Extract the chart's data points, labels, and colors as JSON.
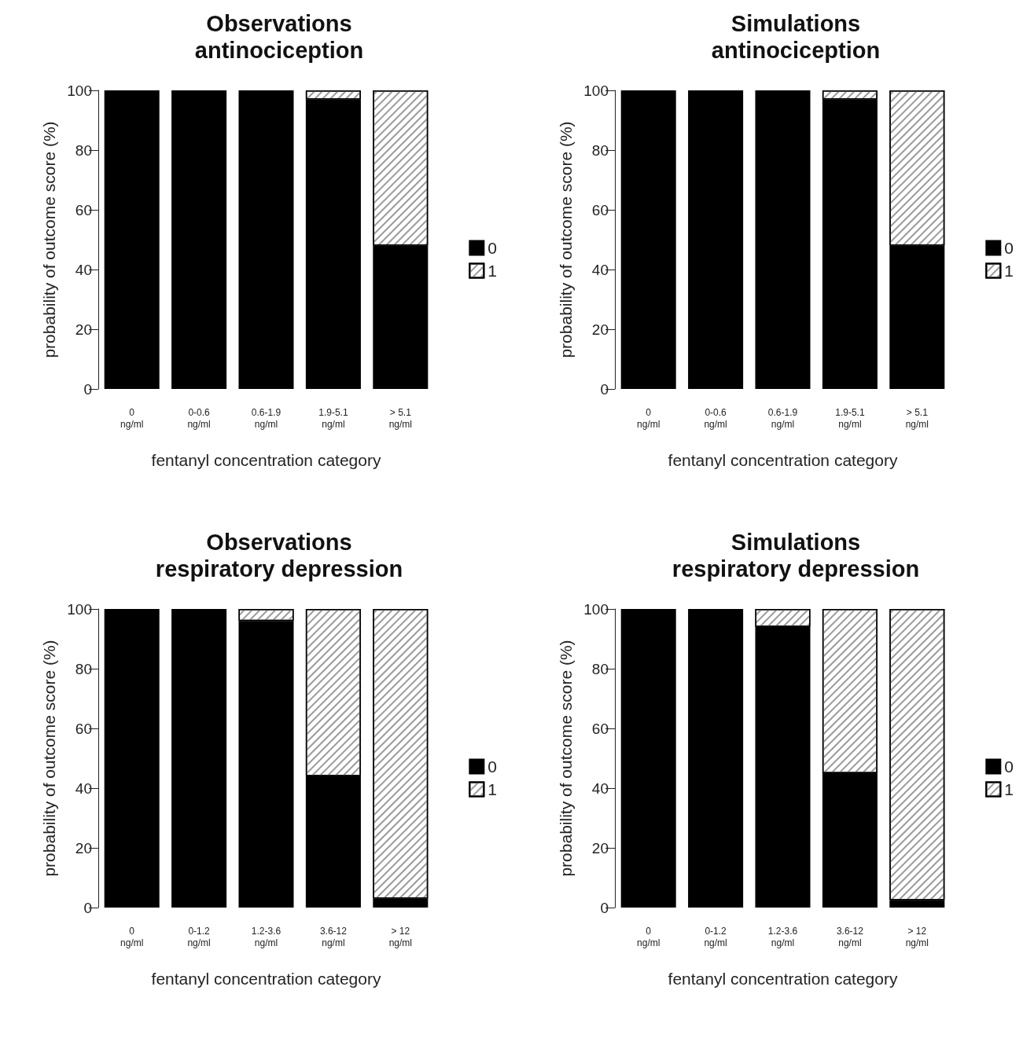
{
  "chart_data": [
    {
      "type": "bar",
      "title": "Observations\nantinociception",
      "xlabel": "fentanyl concentration category",
      "ylabel": "probability of outcome score (%)",
      "categories": [
        "0\nng/ml",
        "0-0.6\nng/ml",
        "0.6-1.9\nng/ml",
        "1.9-5.1\nng/ml",
        "> 5.1\nng/ml"
      ],
      "stacked": true,
      "ylim": [
        0,
        100
      ],
      "yticks": [
        0,
        20,
        40,
        60,
        80,
        100
      ],
      "legend": "right",
      "grid": false,
      "series": [
        {
          "name": "0",
          "color": "#000000",
          "values": [
            100,
            100,
            100,
            97,
            48
          ]
        },
        {
          "name": "1",
          "color": "#ffffff",
          "values": [
            0,
            0,
            0,
            3,
            52
          ]
        }
      ]
    },
    {
      "type": "bar",
      "title": "Simulations\nantinociception",
      "xlabel": "fentanyl concentration category",
      "ylabel": "probability of outcome score (%)",
      "categories": [
        "0\nng/ml",
        "0-0.6\nng/ml",
        "0.6-1.9\nng/ml",
        "1.9-5.1\nng/ml",
        "> 5.1\nng/ml"
      ],
      "stacked": true,
      "ylim": [
        0,
        100
      ],
      "yticks": [
        0,
        20,
        40,
        60,
        80,
        100
      ],
      "legend": "right",
      "grid": false,
      "series": [
        {
          "name": "0",
          "color": "#000000",
          "values": [
            100,
            100,
            100,
            97,
            48
          ]
        },
        {
          "name": "1",
          "color": "#ffffff",
          "values": [
            0,
            0,
            0,
            3,
            52
          ]
        }
      ]
    },
    {
      "type": "bar",
      "title": "Observations\nrespiratory depression",
      "xlabel": "fentanyl concentration category",
      "ylabel": "probability of outcome score (%)",
      "categories": [
        "0\nng/ml",
        "0-1.2\nng/ml",
        "1.2-3.6\nng/ml",
        "3.6-12\nng/ml",
        "> 12\nng/ml"
      ],
      "stacked": true,
      "ylim": [
        0,
        100
      ],
      "yticks": [
        0,
        20,
        40,
        60,
        80,
        100
      ],
      "legend": "right",
      "grid": false,
      "series": [
        {
          "name": "0",
          "color": "#000000",
          "values": [
            100,
            100,
            96,
            44,
            3
          ]
        },
        {
          "name": "1",
          "color": "#ffffff",
          "values": [
            0,
            0,
            4,
            56,
            97
          ]
        }
      ]
    },
    {
      "type": "bar",
      "title": "Simulations\nrespiratory depression",
      "xlabel": "fentanyl concentration category",
      "ylabel": "probability of outcome score (%)",
      "categories": [
        "0\nng/ml",
        "0-1.2\nng/ml",
        "1.2-3.6\nng/ml",
        "3.6-12\nng/ml",
        "> 12\nng/ml"
      ],
      "stacked": true,
      "ylim": [
        0,
        100
      ],
      "yticks": [
        0,
        20,
        40,
        60,
        80,
        100
      ],
      "legend": "right",
      "grid": false,
      "series": [
        {
          "name": "0",
          "color": "#000000",
          "values": [
            100,
            100,
            94,
            45,
            2.5
          ]
        },
        {
          "name": "1",
          "color": "#ffffff",
          "values": [
            0,
            0,
            6,
            55,
            97.5
          ]
        }
      ]
    }
  ]
}
